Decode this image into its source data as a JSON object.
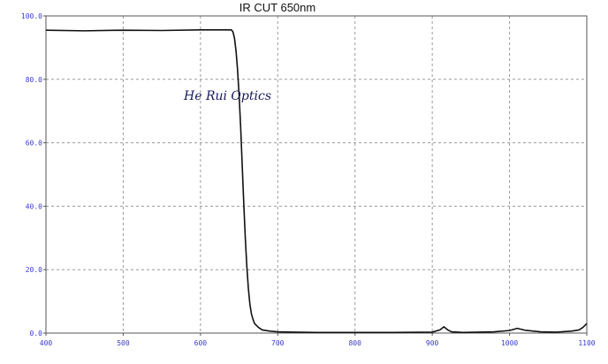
{
  "chart_data": {
    "type": "line",
    "title": "IR CUT 650nm",
    "annotation": "He Rui Optics",
    "xlim": [
      400,
      1100
    ],
    "ylim": [
      0,
      100
    ],
    "x_ticks": [
      400,
      500,
      600,
      700,
      800,
      900,
      1000,
      1100
    ],
    "x_tick_labels": [
      "400",
      "500",
      "600",
      "700",
      "800",
      "900",
      "1000",
      "1100"
    ],
    "y_ticks": [
      0,
      20,
      40,
      60,
      80,
      100
    ],
    "y_tick_labels": [
      "0.0",
      "20.0",
      "40.0",
      "60.0",
      "80.0",
      "100.0"
    ],
    "grid": true,
    "colors": {
      "line": "#111111",
      "grid": "#9a9a9a",
      "tick_label": "#3a3ac8",
      "axis": "#555555"
    },
    "series": [
      {
        "x": [
          400,
          450,
          500,
          550,
          600,
          620,
          640,
          642,
          644,
          646,
          648,
          650,
          652,
          654,
          656,
          658,
          660,
          662,
          664,
          666,
          668,
          670,
          675,
          680,
          690,
          700,
          720,
          750,
          800,
          850,
          900,
          910,
          915,
          920,
          925,
          940,
          960,
          980,
          1000,
          1010,
          1020,
          1040,
          1060,
          1080,
          1090,
          1095,
          1100
        ],
        "y": [
          95.5,
          95.3,
          95.5,
          95.4,
          95.6,
          95.6,
          95.6,
          95.0,
          93.0,
          89.0,
          83.0,
          75.0,
          65.0,
          53.0,
          41.0,
          30.0,
          21.0,
          14.0,
          9.0,
          6.0,
          4.3,
          3.0,
          1.8,
          1.0,
          0.6,
          0.4,
          0.3,
          0.2,
          0.2,
          0.2,
          0.3,
          1.0,
          2.0,
          1.0,
          0.4,
          0.2,
          0.3,
          0.4,
          0.8,
          1.5,
          0.9,
          0.4,
          0.3,
          0.6,
          1.0,
          1.8,
          3.0
        ]
      }
    ]
  }
}
